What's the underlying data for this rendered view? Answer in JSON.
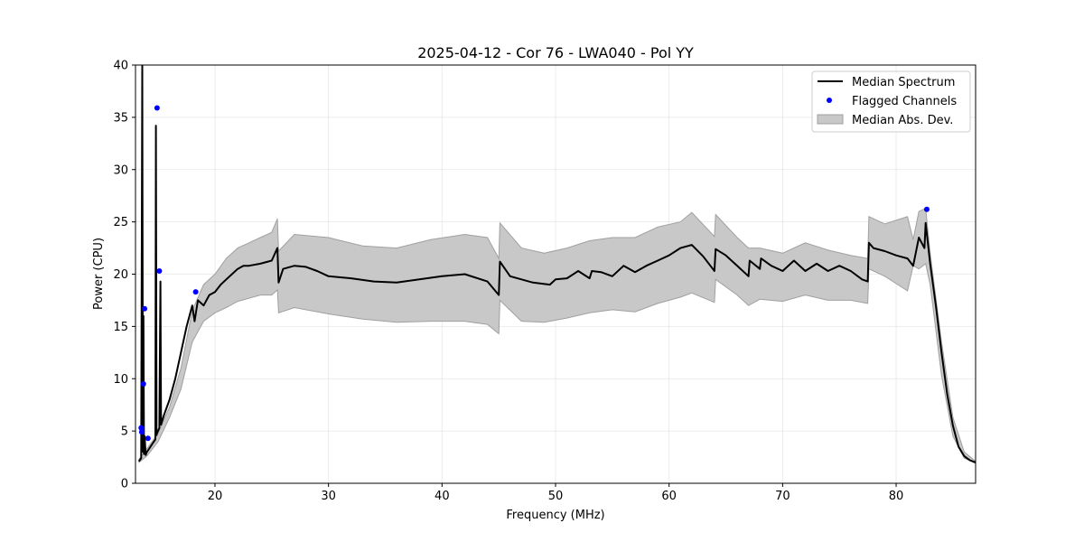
{
  "chart_data": {
    "type": "line",
    "title": "2025-04-12 - Cor 76 - LWA040 - Pol YY",
    "xlabel": "Frequency (MHz)",
    "ylabel": "Power (CPU)",
    "xlim": [
      13,
      87
    ],
    "ylim": [
      0,
      40
    ],
    "xticks": [
      20,
      30,
      40,
      50,
      60,
      70,
      80
    ],
    "yticks": [
      0,
      5,
      10,
      15,
      20,
      25,
      30,
      35,
      40
    ],
    "grid": true,
    "legend_position": "top-right",
    "colors": {
      "median": "#000000",
      "flagged": "#0000ff",
      "band_fill": "#c8c8c8",
      "band_edge": "#a0a0a0"
    },
    "series": [
      {
        "name": "Median Spectrum",
        "kind": "line",
        "x": [
          13.3,
          13.5,
          13.6,
          13.65,
          13.7,
          13.75,
          13.8,
          13.9,
          14.0,
          14.2,
          14.5,
          14.75,
          14.8,
          14.85,
          14.9,
          15.1,
          15.2,
          15.25,
          15.3,
          15.5,
          16.0,
          16.5,
          17.0,
          17.5,
          18.0,
          18.2,
          18.5,
          19.0,
          19.5,
          20.0,
          20.5,
          21.0,
          21.5,
          22.0,
          22.5,
          23.0,
          24.0,
          25.0,
          25.5,
          25.6,
          26.0,
          27.0,
          28.0,
          29.0,
          30.0,
          32.0,
          34.0,
          36.0,
          38.0,
          40.0,
          42.0,
          44.0,
          45.0,
          45.1,
          46.0,
          48.0,
          49.5,
          50.0,
          51.0,
          52.0,
          53.0,
          53.2,
          54.0,
          55.0,
          56.0,
          57.0,
          58.0,
          59.0,
          60.0,
          61.0,
          62.0,
          63.0,
          64.0,
          64.1,
          65.0,
          66.0,
          67.0,
          67.1,
          68.0,
          68.1,
          69.0,
          70.0,
          71.0,
          72.0,
          73.0,
          74.0,
          75.0,
          76.0,
          77.0,
          77.5,
          77.6,
          78.0,
          79.0,
          80.0,
          81.0,
          81.5,
          82.0,
          82.5,
          82.6,
          83.0,
          83.5,
          84.0,
          84.5,
          85.0,
          85.5,
          86.0,
          86.5,
          87.0
        ],
        "y": [
          2.1,
          2.4,
          40,
          3.0,
          16,
          2.8,
          4.5,
          2.7,
          3.0,
          3.3,
          3.8,
          4.2,
          34.2,
          4.6,
          4.8,
          5.3,
          19.3,
          5.6,
          5.8,
          6.5,
          8.0,
          10.0,
          12.5,
          15.0,
          17.0,
          15.5,
          17.5,
          17.0,
          18.0,
          18.3,
          19.0,
          19.5,
          20.0,
          20.5,
          20.8,
          20.8,
          21.0,
          21.3,
          22.5,
          19.2,
          20.5,
          20.8,
          20.7,
          20.3,
          19.8,
          19.6,
          19.3,
          19.2,
          19.5,
          19.8,
          20.0,
          19.3,
          18.0,
          21.2,
          19.8,
          19.2,
          19.0,
          19.5,
          19.6,
          20.3,
          19.6,
          20.3,
          20.2,
          19.8,
          20.8,
          20.2,
          20.8,
          21.3,
          21.8,
          22.5,
          22.8,
          21.7,
          20.3,
          22.4,
          21.8,
          20.8,
          19.8,
          21.3,
          20.5,
          21.5,
          20.8,
          20.3,
          21.3,
          20.3,
          21.0,
          20.3,
          20.8,
          20.3,
          19.5,
          19.3,
          23.0,
          22.5,
          22.2,
          21.8,
          21.5,
          20.8,
          23.5,
          22.5,
          24.9,
          21.0,
          17.0,
          12.5,
          8.5,
          5.5,
          3.5,
          2.6,
          2.2,
          2.0
        ]
      },
      {
        "name": "Flagged Channels",
        "kind": "scatter",
        "x": [
          13.5,
          13.55,
          13.7,
          13.8,
          14.1,
          14.9,
          15.1,
          18.3,
          82.7
        ],
        "y": [
          5.3,
          4.9,
          9.5,
          16.7,
          4.3,
          35.9,
          20.3,
          18.3,
          26.2
        ]
      },
      {
        "name": "Median Abs. Dev.",
        "kind": "band",
        "x": [
          13.3,
          14.0,
          15.0,
          16.0,
          17.0,
          18.0,
          19.0,
          20.0,
          21.0,
          22.0,
          23.0,
          24.0,
          25.0,
          25.5,
          25.6,
          27.0,
          30.0,
          33.0,
          36.0,
          39.0,
          42.0,
          44.0,
          45.0,
          45.1,
          47.0,
          49.0,
          51.0,
          53.0,
          55.0,
          57.0,
          59.0,
          61.0,
          62.0,
          64.0,
          64.1,
          66.0,
          67.0,
          68.0,
          70.0,
          72.0,
          74.0,
          76.0,
          77.5,
          77.6,
          79.0,
          81.0,
          81.5,
          82.0,
          82.6,
          83.0,
          84.0,
          85.0,
          86.0,
          87.0
        ],
        "upper": [
          2.3,
          3.3,
          4.8,
          7.3,
          11.0,
          16.5,
          19.0,
          20.0,
          21.5,
          22.5,
          23.0,
          23.5,
          24.0,
          25.3,
          22.2,
          23.8,
          23.5,
          22.7,
          22.5,
          23.3,
          23.8,
          23.5,
          21.5,
          24.9,
          22.5,
          22.0,
          22.5,
          23.2,
          23.5,
          23.5,
          24.5,
          25.0,
          25.9,
          23.6,
          25.7,
          23.5,
          22.5,
          22.5,
          22.0,
          23.0,
          22.3,
          21.8,
          21.5,
          25.5,
          24.8,
          25.5,
          23.3,
          26.0,
          26.3,
          22.0,
          13.5,
          6.3,
          3.0,
          2.1
        ],
        "lower": [
          2.0,
          2.6,
          4.0,
          6.3,
          9.0,
          13.5,
          15.5,
          16.3,
          16.8,
          17.4,
          17.7,
          18.0,
          18.0,
          18.5,
          16.3,
          16.8,
          16.2,
          15.7,
          15.4,
          15.5,
          15.5,
          15.2,
          14.3,
          17.5,
          15.5,
          15.4,
          15.8,
          16.3,
          16.6,
          16.4,
          17.2,
          17.8,
          18.2,
          17.3,
          19.5,
          18.0,
          17.0,
          17.6,
          17.4,
          18.0,
          17.5,
          17.5,
          17.2,
          20.5,
          19.8,
          18.4,
          20.8,
          20.5,
          21.0,
          19.0,
          10.3,
          4.5,
          2.4,
          1.9
        ]
      }
    ]
  }
}
